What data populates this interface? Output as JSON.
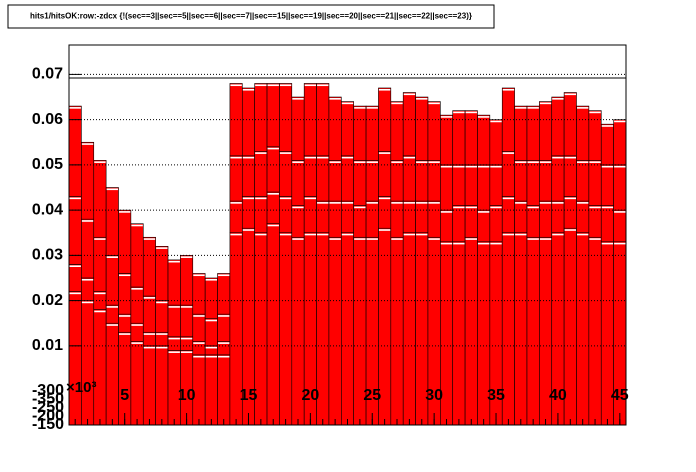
{
  "chart_data": {
    "type": "stacked-histogram",
    "title": "hits1/hitsOK:row:-zdcx {!(sec==3||sec==5||sec==6||sec==7||sec==15||sec==19||sec==20||sec==21||sec==22||sec==23)}",
    "x": [
      1,
      2,
      3,
      4,
      5,
      6,
      7,
      8,
      9,
      10,
      11,
      12,
      13,
      14,
      15,
      16,
      17,
      18,
      19,
      20,
      21,
      22,
      23,
      24,
      25,
      26,
      27,
      28,
      29,
      30,
      31,
      32,
      33,
      34,
      35,
      36,
      37,
      38,
      39,
      40,
      41,
      42,
      43,
      44,
      45
    ],
    "series": [
      {
        "color": "#ff0000",
        "values": [
          0.022,
          0.02,
          0.018,
          0.015,
          0.013,
          0.011,
          0.01,
          0.01,
          0.009,
          0.009,
          0.008,
          0.008,
          0.008,
          0.035,
          0.036,
          0.035,
          0.037,
          0.035,
          0.034,
          0.035,
          0.035,
          0.034,
          0.035,
          0.034,
          0.034,
          0.036,
          0.034,
          0.035,
          0.035,
          0.034,
          0.033,
          0.033,
          0.034,
          0.033,
          0.033,
          0.035,
          0.035,
          0.034,
          0.034,
          0.035,
          0.036,
          0.035,
          0.034,
          0.033,
          0.033
        ]
      },
      {
        "color": "#ff0000",
        "values": [
          0.006,
          0.005,
          0.004,
          0.004,
          0.004,
          0.004,
          0.003,
          0.003,
          0.003,
          0.003,
          0.003,
          0.002,
          0.003,
          0.007,
          0.007,
          0.008,
          0.007,
          0.008,
          0.007,
          0.008,
          0.007,
          0.008,
          0.007,
          0.007,
          0.008,
          0.007,
          0.008,
          0.007,
          0.007,
          0.008,
          0.007,
          0.008,
          0.007,
          0.007,
          0.008,
          0.008,
          0.007,
          0.007,
          0.008,
          0.007,
          0.007,
          0.007,
          0.007,
          0.008,
          0.007
        ]
      },
      {
        "color": "#ff0000",
        "values": [
          0.015,
          0.013,
          0.012,
          0.011,
          0.009,
          0.008,
          0.008,
          0.007,
          0.007,
          0.007,
          0.006,
          0.006,
          0.006,
          0.01,
          0.009,
          0.01,
          0.01,
          0.01,
          0.01,
          0.009,
          0.01,
          0.009,
          0.01,
          0.01,
          0.009,
          0.01,
          0.009,
          0.01,
          0.009,
          0.009,
          0.01,
          0.009,
          0.009,
          0.01,
          0.009,
          0.01,
          0.009,
          0.01,
          0.009,
          0.01,
          0.009,
          0.009,
          0.01,
          0.009,
          0.01
        ]
      },
      {
        "color": "#ff0000",
        "values": [
          0.02,
          0.017,
          0.017,
          0.015,
          0.014,
          0.014,
          0.013,
          0.012,
          0.01,
          0.011,
          0.009,
          0.009,
          0.009,
          0.016,
          0.015,
          0.015,
          0.014,
          0.015,
          0.014,
          0.016,
          0.016,
          0.014,
          0.012,
          0.012,
          0.012,
          0.014,
          0.013,
          0.014,
          0.014,
          0.013,
          0.011,
          0.012,
          0.012,
          0.011,
          0.01,
          0.014,
          0.012,
          0.012,
          0.013,
          0.013,
          0.014,
          0.012,
          0.011,
          0.009,
          0.01
        ]
      }
    ],
    "xlim": [
      0.5,
      45.5
    ],
    "xticks": [
      5,
      10,
      15,
      20,
      25,
      30,
      35,
      40,
      45
    ],
    "ylim": [
      -0.0075,
      0.0765
    ],
    "yticks": [
      0.01,
      0.02,
      0.03,
      0.04,
      0.05,
      0.06,
      0.07
    ],
    "grid": true,
    "x_exponent": "×10³",
    "overlap_labels": [
      "-300",
      "-350",
      "-250",
      "-200",
      "-150"
    ]
  }
}
